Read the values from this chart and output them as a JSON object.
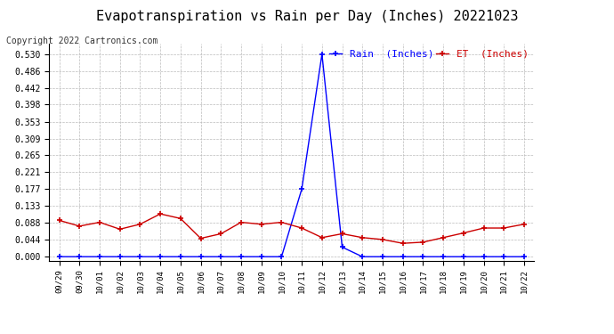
{
  "title": "Evapotranspiration vs Rain per Day (Inches) 20221023",
  "copyright_text": "Copyright 2022 Cartronics.com",
  "legend_rain": "Rain  (Inches)",
  "legend_et": "ET  (Inches)",
  "x_labels": [
    "09/29",
    "09/30",
    "10/01",
    "10/02",
    "10/03",
    "10/04",
    "10/05",
    "10/06",
    "10/07",
    "10/08",
    "10/09",
    "10/10",
    "10/11",
    "10/12",
    "10/13",
    "10/14",
    "10/15",
    "10/16",
    "10/17",
    "10/18",
    "10/19",
    "10/20",
    "10/21",
    "10/22"
  ],
  "rain_values": [
    0.0,
    0.0,
    0.0,
    0.0,
    0.0,
    0.0,
    0.0,
    0.0,
    0.0,
    0.0,
    0.0,
    0.0,
    0.177,
    0.53,
    0.025,
    0.0,
    0.0,
    0.0,
    0.0,
    0.0,
    0.0,
    0.0,
    0.0,
    0.0
  ],
  "et_values": [
    0.095,
    0.08,
    0.09,
    0.072,
    0.085,
    0.112,
    0.1,
    0.048,
    0.06,
    0.09,
    0.085,
    0.09,
    0.075,
    0.05,
    0.06,
    0.05,
    0.045,
    0.035,
    0.038,
    0.05,
    0.062,
    0.075,
    0.075,
    0.085
  ],
  "rain_color": "#0000ff",
  "et_color": "#cc0000",
  "background_color": "#ffffff",
  "grid_color": "#bbbbbb",
  "title_fontsize": 11,
  "copyright_fontsize": 7,
  "legend_fontsize": 8,
  "yticks": [
    0.0,
    0.044,
    0.088,
    0.133,
    0.177,
    0.221,
    0.265,
    0.309,
    0.353,
    0.398,
    0.442,
    0.486,
    0.53
  ],
  "ylim": [
    -0.01,
    0.558
  ],
  "marker": "+"
}
